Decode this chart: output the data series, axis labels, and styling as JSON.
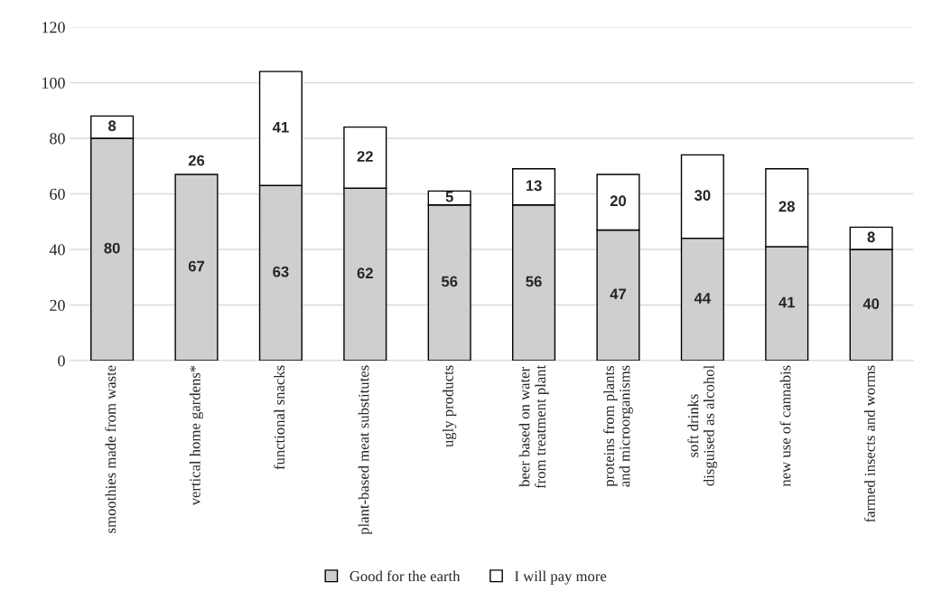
{
  "chart_data": {
    "type": "bar",
    "stacked": true,
    "categories": [
      "smoothies made from waste",
      "vertical home gardens*",
      "functional snacks",
      "plant-based meat substitutes",
      "ugly products",
      "beer based on water from treatment plant",
      "proteins from plants and microorganisms",
      "soft drinks disguised as alcohol",
      "new use of cannabis",
      "farmed insects and worms"
    ],
    "series": [
      {
        "name": "Good for the earth",
        "color": "#d0cece",
        "values": [
          80,
          67,
          63,
          62,
          56,
          56,
          47,
          44,
          41,
          40
        ],
        "value_labels": [
          "80",
          "67",
          "63",
          "62",
          "56",
          "56",
          "47",
          "44",
          "41",
          "40"
        ]
      },
      {
        "name": "I will pay more",
        "color": "#ffffff",
        "values": [
          8,
          null,
          41,
          22,
          5,
          13,
          20,
          30,
          28,
          8
        ],
        "value_labels": [
          "8",
          "26",
          "41",
          "22",
          "5",
          "13",
          "20",
          "30",
          "28",
          "8"
        ]
      }
    ],
    "ylim": [
      0,
      120
    ],
    "yticks": [
      0,
      20,
      40,
      60,
      80,
      100,
      120
    ],
    "grid": "y",
    "legend": "bottom"
  }
}
